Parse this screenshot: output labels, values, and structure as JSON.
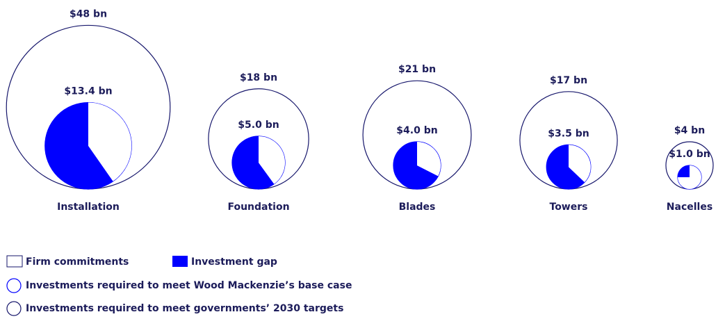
{
  "chart_data": {
    "type": "nested-pie",
    "categories": [
      "Installation",
      "Foundation",
      "Blades",
      "Towers",
      "Nacelles"
    ],
    "series": [
      {
        "name": "Investments required to meet governments’ 2030 targets",
        "color": "#16166b",
        "values": [
          48,
          18,
          21,
          17,
          4
        ],
        "value_labels": [
          "$48 bn",
          "$18 bn",
          "$21 bn",
          "$17 bn",
          "$4 bn"
        ]
      },
      {
        "name": "Investments required to meet Wood Mackenzie’s base case",
        "color": "#0000ff",
        "values": [
          13.4,
          5.0,
          4.0,
          3.5,
          1.0
        ],
        "value_labels": [
          "$13.4 bn",
          "$5.0 bn",
          "$4.0 bn",
          "$3.5 bn",
          "$1.0 bn"
        ]
      },
      {
        "name": "Investment gap",
        "color": "#0000ff",
        "values": [
          8.0,
          3.0,
          2.7,
          2.2,
          0.25
        ]
      },
      {
        "name": "Firm commitments",
        "color": "#ffffff",
        "values": [
          5.4,
          2.0,
          1.3,
          1.3,
          0.75
        ]
      }
    ]
  }
}
